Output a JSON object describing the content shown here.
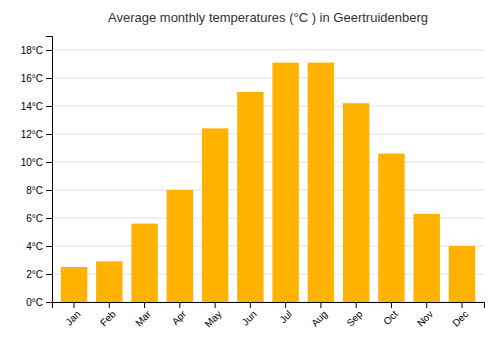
{
  "chart_data": {
    "type": "bar",
    "title": "Average monthly temperatures (°C ) in Geertruidenberg",
    "categories": [
      "Jan",
      "Feb",
      "Mar",
      "Apr",
      "May",
      "Jun",
      "Jul",
      "Aug",
      "Sep",
      "Oct",
      "Nov",
      "Dec"
    ],
    "values": [
      2.5,
      2.9,
      5.6,
      8.0,
      12.4,
      15.0,
      17.1,
      17.1,
      14.2,
      10.6,
      6.3,
      4.0
    ],
    "color": "#FFB300",
    "ylim": [
      0,
      19
    ],
    "yticks": [
      {
        "value": 0,
        "label": "0°C"
      },
      {
        "value": 2,
        "label": "2°C"
      },
      {
        "value": 4,
        "label": "4°C"
      },
      {
        "value": 6,
        "label": "6°C"
      },
      {
        "value": 8,
        "label": "8°C"
      },
      {
        "value": 10,
        "label": "10°C"
      },
      {
        "value": 12,
        "label": "12°C"
      },
      {
        "value": 14,
        "label": "14°C"
      },
      {
        "value": 16,
        "label": "16°C"
      },
      {
        "value": 18,
        "label": "18°C"
      }
    ],
    "grid": true
  }
}
